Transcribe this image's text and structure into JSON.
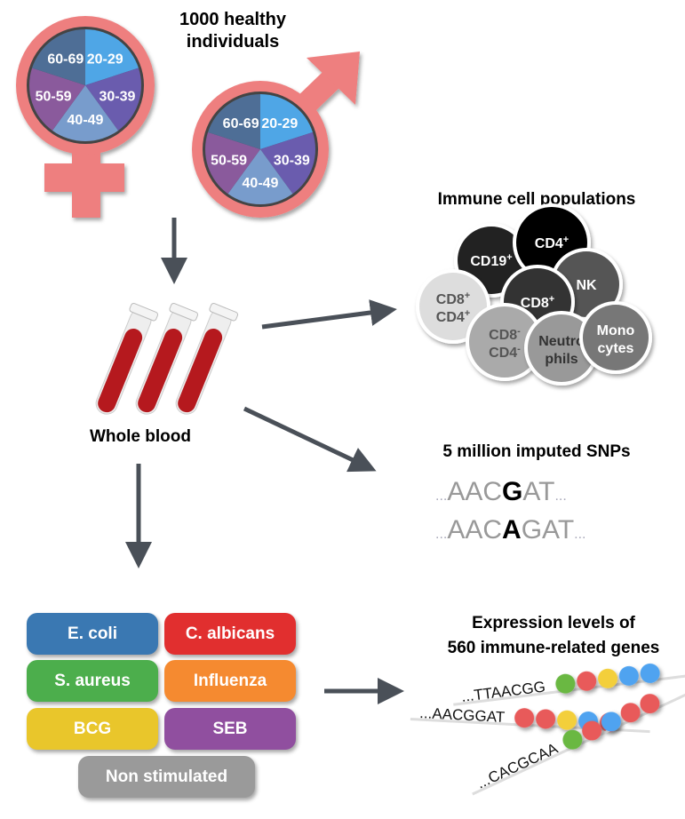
{
  "cohort": {
    "title_line1": "1000 healthy",
    "title_line2": "individuals",
    "age_groups": [
      "20-29",
      "30-39",
      "40-49",
      "50-59",
      "60-69"
    ],
    "age_colors": [
      "#4fa6e6",
      "#6a5cae",
      "#789ccc",
      "#8a5a9c",
      "#4e6e96"
    ],
    "symbol_color": "#ee7f7f"
  },
  "blood": {
    "label": "Whole blood"
  },
  "cells": {
    "title": "Immune cell populations",
    "items": [
      {
        "label1": "CD19",
        "sup1": "+",
        "color": "#222222",
        "text": "#ffffff"
      },
      {
        "label1": "CD4",
        "sup1": "+",
        "color": "#000000",
        "text": "#ffffff"
      },
      {
        "label1": "NK",
        "color": "#555555",
        "text": "#ffffff"
      },
      {
        "label1": "CD8",
        "sup1": "+",
        "label2": "CD4",
        "sup2": "+",
        "color": "#dddddd",
        "text": "#555555"
      },
      {
        "label1": "CD8",
        "sup1": "+",
        "color": "#333333",
        "text": "#ffffff"
      },
      {
        "label1": "CD8",
        "sup1": "-",
        "label2": "CD4",
        "sup2": "-",
        "color": "#aaaaaa",
        "text": "#555555"
      },
      {
        "label1": "Neutro",
        "label2": "phils",
        "color": "#999999",
        "text": "#333333"
      },
      {
        "label1": "Mono",
        "label2": "cytes",
        "color": "#777777",
        "text": "#ffffff"
      }
    ]
  },
  "snps": {
    "title": "5 million imputed SNPs",
    "seq1": {
      "pre": "AACG",
      "pre_plain": "AAC",
      "allele": "G",
      "post": "AT"
    },
    "seq2": {
      "pre_plain": "AAC",
      "allele": "A",
      "post": "GAT"
    },
    "dots": "..."
  },
  "stimuli": {
    "items": [
      {
        "label": "E. coli",
        "color": "#3a78b2"
      },
      {
        "label": "C. albicans",
        "color": "#e12f2f"
      },
      {
        "label": "S. aureus",
        "color": "#4cae4c"
      },
      {
        "label": "Influenza",
        "color": "#f58a30"
      },
      {
        "label": "BCG",
        "color": "#e9c62b"
      },
      {
        "label": "SEB",
        "color": "#904f9f"
      },
      {
        "label": "Non stimulated",
        "color": "#9a9a9a"
      }
    ]
  },
  "expression": {
    "title_line1": "Expression levels of",
    "title_line2": "560 immune-related genes",
    "strands": [
      {
        "seq": "...TTAACGG",
        "dots": [
          "#6ab843",
          "#e85a5a",
          "#f3cf3a",
          "#4fa3f0",
          "#4fa3f0"
        ]
      },
      {
        "seq": "...AACGGAT",
        "dots": [
          "#e85a5a",
          "#e85a5a",
          "#f3cf3a",
          "#4fa3f0",
          "#e85a5a"
        ]
      },
      {
        "seq": "...CACGCAA",
        "dots": [
          "#6ab843",
          "#e85a5a",
          "#4fa3f0",
          "#e85a5a",
          "#e85a5a"
        ]
      }
    ]
  },
  "arrow_color": "#4a5058"
}
